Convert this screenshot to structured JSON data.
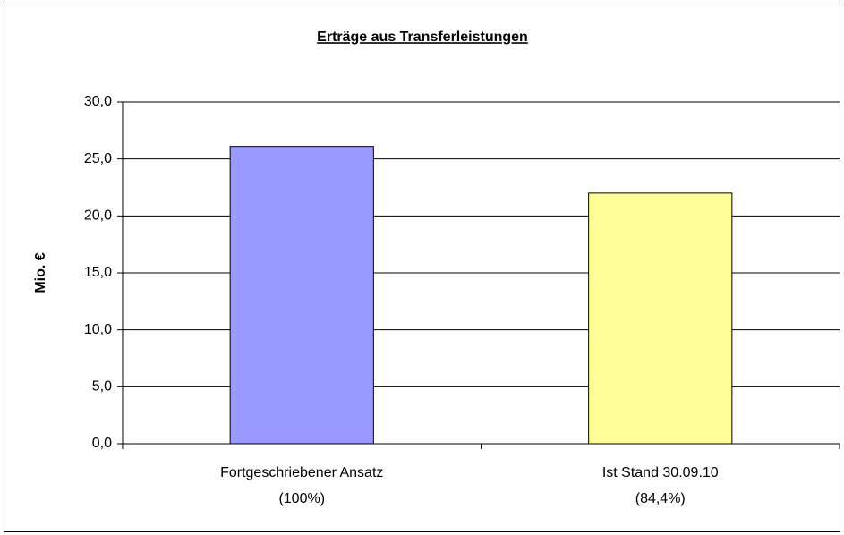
{
  "chart_data": {
    "type": "bar",
    "title": "Erträge aus Transferleistungen",
    "y_label": "Mio. €",
    "categories": [
      [
        "Fortgeschriebener Ansatz",
        "(100%)"
      ],
      [
        "Ist Stand 30.09.10",
        "(84,4%)"
      ]
    ],
    "values": [
      26.1,
      22.0
    ],
    "colors": [
      "#9999ff",
      "#ffff99"
    ],
    "ylim": [
      0,
      30
    ],
    "yticks": [
      {
        "value": 0,
        "label": "0,0"
      },
      {
        "value": 5,
        "label": "5,0"
      },
      {
        "value": 10,
        "label": "10,0"
      },
      {
        "value": 15,
        "label": "15,0"
      },
      {
        "value": 20,
        "label": "20,0"
      },
      {
        "value": 25,
        "label": "25,0"
      },
      {
        "value": 30,
        "label": "30,0"
      }
    ],
    "grid": true
  }
}
